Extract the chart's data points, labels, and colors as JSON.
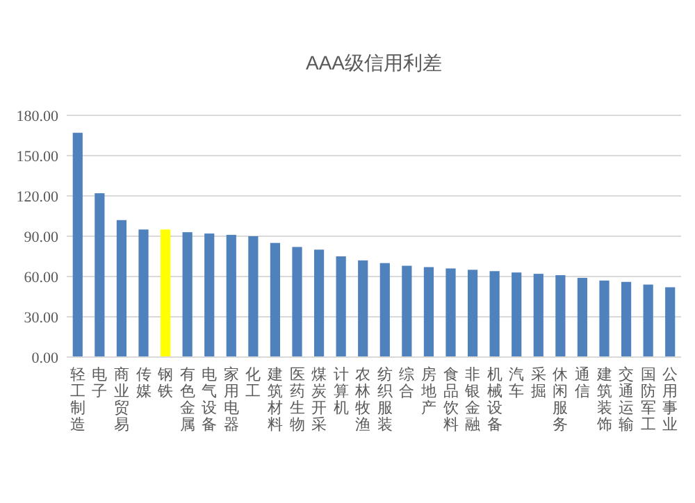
{
  "chart_data": {
    "type": "bar",
    "title": "AAA级信用利差",
    "categories": [
      "轻工制造",
      "电子",
      "商业贸易",
      "传媒",
      "钢铁",
      "有色金属",
      "电气设备",
      "家用电器",
      "化工",
      "建筑材料",
      "医药生物",
      "煤炭开采",
      "计算机",
      "农林牧渔",
      "纺织服装",
      "综合",
      "房地产",
      "食品饮料",
      "非银金融",
      "机械设备",
      "汽车",
      "采掘",
      "休闲服务",
      "通信",
      "建筑装饰",
      "交通运输",
      "国防军工",
      "公用事业"
    ],
    "values": [
      167,
      122,
      102,
      95,
      95,
      93,
      92,
      91,
      90,
      85,
      82,
      80,
      75,
      72,
      70,
      68,
      67,
      66,
      65,
      64,
      63,
      62,
      61,
      59,
      57,
      56,
      54,
      52
    ],
    "colors": [
      "#4f81bd",
      "#4f81bd",
      "#4f81bd",
      "#4f81bd",
      "#ffff00",
      "#4f81bd",
      "#4f81bd",
      "#4f81bd",
      "#4f81bd",
      "#4f81bd",
      "#4f81bd",
      "#4f81bd",
      "#4f81bd",
      "#4f81bd",
      "#4f81bd",
      "#4f81bd",
      "#4f81bd",
      "#4f81bd",
      "#4f81bd",
      "#4f81bd",
      "#4f81bd",
      "#4f81bd",
      "#4f81bd",
      "#4f81bd",
      "#4f81bd",
      "#4f81bd",
      "#4f81bd",
      "#4f81bd"
    ],
    "ylim": [
      0,
      180
    ],
    "yticks": [
      {
        "value": 0,
        "label": "0.00"
      },
      {
        "value": 30,
        "label": "30.00"
      },
      {
        "value": 60,
        "label": "60.00"
      },
      {
        "value": 90,
        "label": "90.00"
      },
      {
        "value": 120,
        "label": "120.00"
      },
      {
        "value": 150,
        "label": "150.00"
      },
      {
        "value": 180,
        "label": "180.00"
      }
    ],
    "grid": "y"
  }
}
